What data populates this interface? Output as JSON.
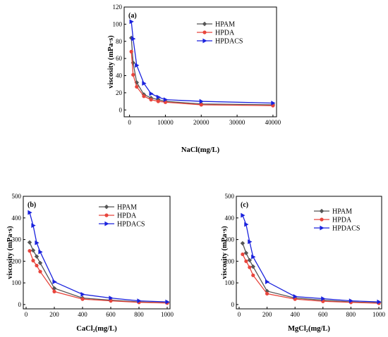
{
  "chart_data": [
    {
      "type": "line",
      "panel_label": "(a)",
      "xlabel": "NaCl(mg/L)",
      "ylabel": "viscosity (mPa·s)",
      "xlim": [
        -1500,
        41000
      ],
      "ylim": [
        -8,
        120
      ],
      "xticks": [
        0,
        10000,
        20000,
        30000,
        40000
      ],
      "yticks": [
        0,
        20,
        40,
        60,
        80,
        100,
        120
      ],
      "legend_position": "top-right",
      "series": [
        {
          "name": "HPAM",
          "color": "#555555",
          "marker": "diamond",
          "x": [
            500,
            1000,
            2000,
            4000,
            6000,
            8000,
            10000,
            20000,
            40000
          ],
          "y": [
            84,
            55,
            32,
            18,
            14,
            12,
            10,
            7,
            6
          ]
        },
        {
          "name": "HPDA",
          "color": "#e8453c",
          "marker": "circle",
          "x": [
            500,
            1000,
            2000,
            4000,
            6000,
            8000,
            10000,
            20000,
            40000
          ],
          "y": [
            68,
            41,
            27,
            16,
            12,
            10,
            9,
            6,
            5
          ]
        },
        {
          "name": "HPDACS",
          "color": "#1a22dd",
          "marker": "triangle-right",
          "x": [
            500,
            1000,
            2000,
            4000,
            6000,
            8000,
            10000,
            20000,
            40000
          ],
          "y": [
            103,
            83,
            52,
            31,
            19,
            15,
            12,
            10,
            8
          ]
        }
      ]
    },
    {
      "type": "line",
      "panel_label": "(b)",
      "xlabel": "CaCl₂(mg/L)",
      "ylabel": "viscosity (mPa·s)",
      "xlim": [
        -20,
        1020
      ],
      "ylim": [
        -20,
        500
      ],
      "xticks": [
        0,
        200,
        400,
        600,
        800,
        1000
      ],
      "yticks": [
        0,
        100,
        200,
        300,
        400,
        500
      ],
      "legend_position": "top-right",
      "series": [
        {
          "name": "HPAM",
          "color": "#555555",
          "marker": "diamond",
          "x": [
            25,
            50,
            75,
            100,
            200,
            400,
            600,
            800,
            1000
          ],
          "y": [
            287,
            250,
            222,
            192,
            75,
            30,
            20,
            12,
            8
          ]
        },
        {
          "name": "HPDA",
          "color": "#e8453c",
          "marker": "circle",
          "x": [
            25,
            50,
            75,
            100,
            200,
            400,
            600,
            800,
            1000
          ],
          "y": [
            248,
            203,
            180,
            152,
            60,
            25,
            17,
            10,
            7
          ]
        },
        {
          "name": "HPDACS",
          "color": "#1a22dd",
          "marker": "triangle-right",
          "x": [
            25,
            50,
            75,
            100,
            200,
            400,
            600,
            800,
            1000
          ],
          "y": [
            425,
            365,
            285,
            243,
            105,
            47,
            30,
            17,
            12
          ]
        }
      ]
    },
    {
      "type": "line",
      "panel_label": "(c)",
      "xlabel": "MgCl₂(mg/L)",
      "ylabel": "viscosity (mPa·s)",
      "xlim": [
        -20,
        1020
      ],
      "ylim": [
        -20,
        500
      ],
      "xticks": [
        0,
        200,
        400,
        600,
        800,
        1000
      ],
      "yticks": [
        0,
        100,
        200,
        300,
        400,
        500
      ],
      "legend_position": "top-right",
      "series": [
        {
          "name": "HPAM",
          "color": "#555555",
          "marker": "diamond",
          "x": [
            25,
            50,
            75,
            100,
            200,
            400,
            600,
            800,
            1000
          ],
          "y": [
            283,
            238,
            205,
            175,
            62,
            30,
            20,
            12,
            8
          ]
        },
        {
          "name": "HPDA",
          "color": "#e8453c",
          "marker": "circle",
          "x": [
            25,
            50,
            75,
            100,
            200,
            400,
            600,
            800,
            1000
          ],
          "y": [
            232,
            200,
            172,
            135,
            50,
            25,
            15,
            10,
            6
          ]
        },
        {
          "name": "HPDACS",
          "color": "#1a22dd",
          "marker": "triangle-right",
          "x": [
            25,
            50,
            75,
            100,
            200,
            400,
            600,
            800,
            1000
          ],
          "y": [
            412,
            370,
            290,
            220,
            105,
            37,
            27,
            17,
            12
          ]
        }
      ]
    }
  ]
}
